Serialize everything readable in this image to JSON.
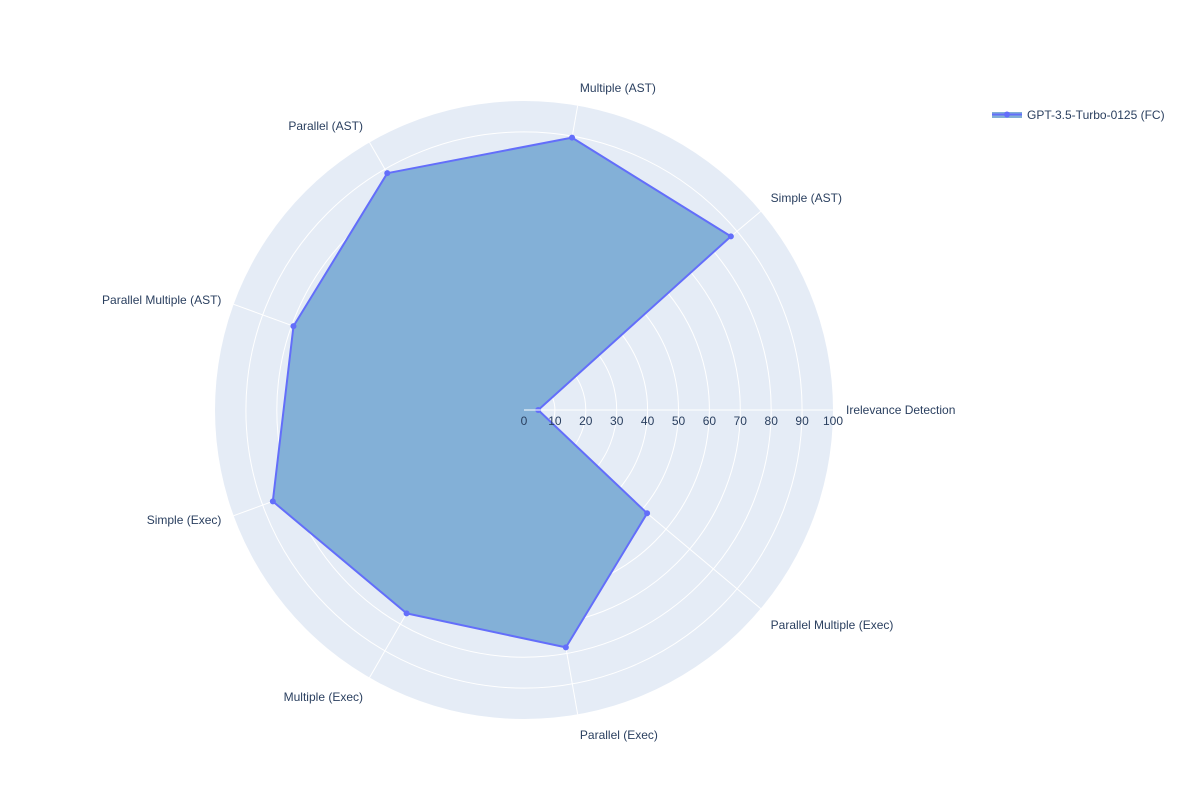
{
  "chart_data": {
    "type": "radar",
    "title": "",
    "categories": [
      "Irelevance Detection",
      "Simple (AST)",
      "Multiple (AST)",
      "Parallel (AST)",
      "Parallel Multiple (AST)",
      "Simple (Exec)",
      "Multiple (Exec)",
      "Parallel (Exec)",
      "Parallel Multiple (Exec)"
    ],
    "radial_ticks": [
      "0",
      "10",
      "20",
      "30",
      "40",
      "50",
      "60",
      "70",
      "80",
      "90",
      "100"
    ],
    "radial_range": [
      0,
      100
    ],
    "series": [
      {
        "name": "GPT-3.5-Turbo-0125 (FC)",
        "values": [
          4.6,
          87.4,
          89.5,
          88.5,
          79.4,
          86.5,
          76.0,
          78.0,
          52.0
        ]
      }
    ],
    "legend_position": "top-right",
    "colors": {
      "polar_bg": "#e5ecf6",
      "grid": "#ffffff",
      "line": "#636efa",
      "fill": "rgba(99,110,250,0.5)",
      "area": "#81aed6",
      "text": "#2a3f5f"
    }
  }
}
